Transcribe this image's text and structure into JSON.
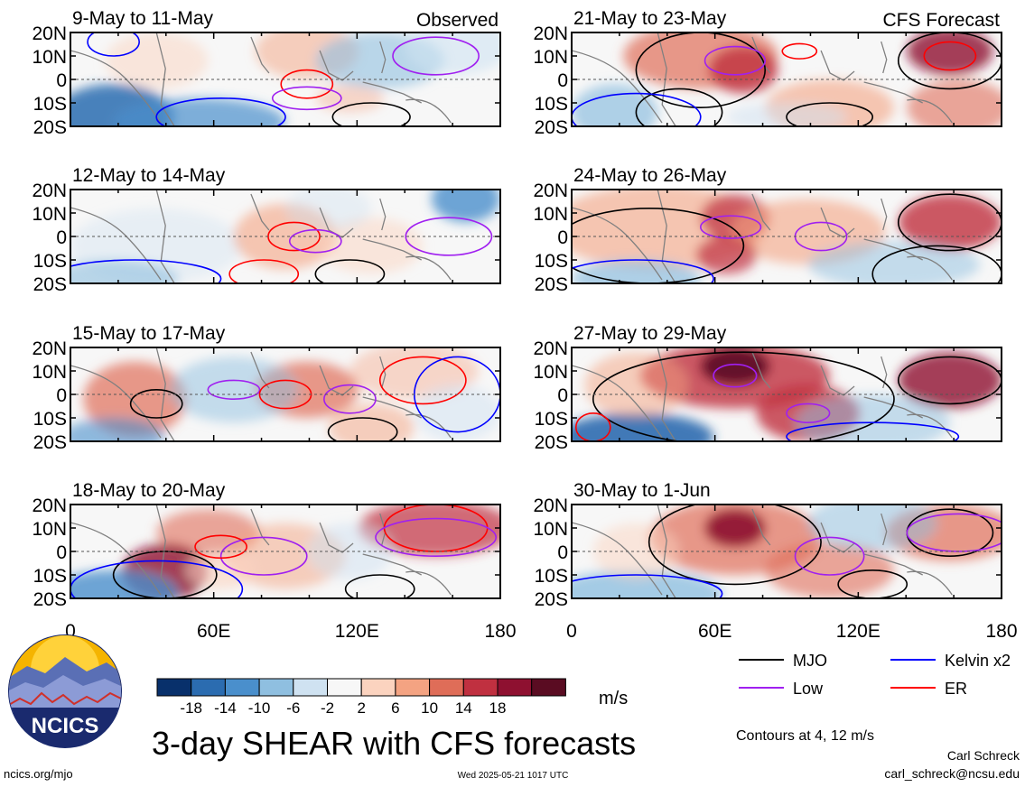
{
  "panels": [
    {
      "date_range": "9-May to 11-May",
      "tag": "Observed"
    },
    {
      "date_range": "21-May to 23-May",
      "tag": "CFS Forecast"
    },
    {
      "date_range": "12-May to 14-May",
      "tag": ""
    },
    {
      "date_range": "24-May to 26-May",
      "tag": ""
    },
    {
      "date_range": "15-May to 17-May",
      "tag": ""
    },
    {
      "date_range": "27-May to 29-May",
      "tag": ""
    },
    {
      "date_range": "18-May to 20-May",
      "tag": ""
    },
    {
      "date_range": "30-May to 1-Jun",
      "tag": ""
    }
  ],
  "y_ticks": [
    "20N",
    "10N",
    "0",
    "10S",
    "20S"
  ],
  "x_ticks": [
    "0",
    "60E",
    "120E",
    "180"
  ],
  "colorbar": {
    "levels": [
      "-18",
      "-14",
      "-10",
      "-6",
      "-2",
      "2",
      "6",
      "10",
      "14",
      "18"
    ],
    "colors": [
      "#08306b",
      "#2b6cb0",
      "#4a8fcc",
      "#8fbfe0",
      "#cfe2f1",
      "#f7f7f7",
      "#fbd3bf",
      "#f4a382",
      "#df6d58",
      "#c03040",
      "#8e1030",
      "#5a0c22"
    ],
    "units": "m/s"
  },
  "legend": [
    {
      "label": "MJO",
      "color": "#000000"
    },
    {
      "label": "Kelvin x2",
      "color": "#0000ff"
    },
    {
      "label": "Low",
      "color": "#a020f0"
    },
    {
      "label": "ER",
      "color": "#ff0000"
    }
  ],
  "title": "3-day SHEAR with CFS forecasts",
  "contours_note": "Contours at 4, 12 m/s",
  "logo_text": "NCICS",
  "website": "ncics.org/mjo",
  "timestamp": "Wed 2025-05-21 1017 UTC",
  "author": "Carl Schreck",
  "email": "carl_schreck@ncsu.edu",
  "chart_data": {
    "type": "heatmap",
    "variable": "SHEAR",
    "units": "m/s",
    "x_axis": {
      "ticks": [
        "0",
        "60E",
        "120E",
        "180"
      ],
      "range": [
        0,
        180
      ]
    },
    "y_axis": {
      "ticks": [
        "20N",
        "10N",
        "0",
        "10S",
        "20S"
      ],
      "range": [
        -20,
        20
      ]
    },
    "contour_levels": [
      4,
      12
    ],
    "series": [
      {
        "name": "MJO"
      },
      {
        "name": "Kelvin x2"
      },
      {
        "name": "Low"
      },
      {
        "name": "ER"
      }
    ]
  }
}
